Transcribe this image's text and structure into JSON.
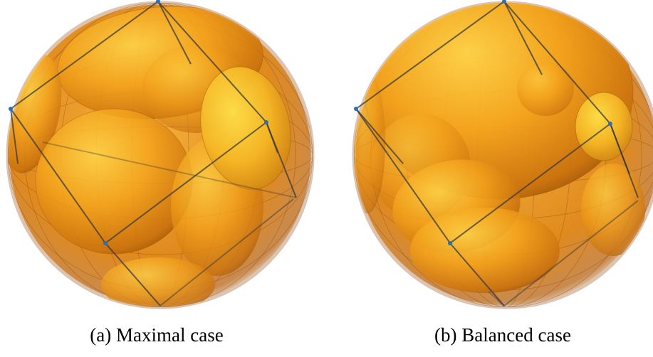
{
  "figures": [
    {
      "caption": "(a) Maximal case"
    },
    {
      "caption": "(b) Balanced case"
    }
  ],
  "colors": {
    "ellipsoid_fill": "#f2a31a",
    "ellipsoid_highlight": "#ffd24a",
    "ellipsoid_shadow": "#a65a08",
    "outer_sphere_rim": "#d9c2ae",
    "polytope_edges": "#3c3c3c",
    "vertex_dots": "#2e6fb3"
  }
}
